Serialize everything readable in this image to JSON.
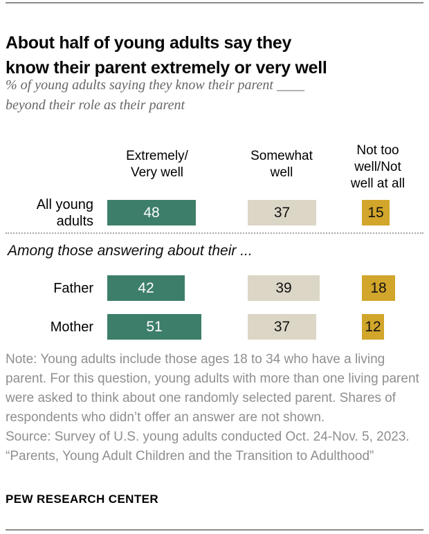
{
  "header": {
    "title": "About half of young adults say they\nknow their parent extremely or very well",
    "subtitle": "% of young adults saying they know their parent ____\nbeyond their role as their parent"
  },
  "chart_data": {
    "type": "bar",
    "orientation": "horizontal",
    "unit": "%",
    "value_labels_shown": true,
    "categories": [
      "All young adults",
      "Father",
      "Mother"
    ],
    "row_display_labels": [
      "All young\nadults",
      "Father",
      "Mother"
    ],
    "series": [
      {
        "name": "Extremely/Very well",
        "header_label": "Extremely/\nVery well",
        "color": "#3D7E6A",
        "label_color": "#ffffff",
        "values": [
          48,
          42,
          51
        ]
      },
      {
        "name": "Somewhat well",
        "header_label": "Somewhat\nwell",
        "color": "#DBD6C6",
        "label_color": "#111111",
        "values": [
          37,
          39,
          37
        ]
      },
      {
        "name": "Not too well/Not well at all",
        "header_label": "Not too\nwell/Not\nwell at all",
        "color": "#D2A52B",
        "label_color": "#111111",
        "values": [
          15,
          18,
          12
        ]
      }
    ],
    "section_divider_label": "Among those answering about their ..."
  },
  "footer": {
    "note": "Note: Young adults include those ages 18 to 34 who have a living parent. For this question, young adults with more than one living parent were asked to think about one randomly selected parent. Shares of respondents who didn’t offer an answer are not shown.",
    "source": "Source: Survey of U.S. young adults conducted Oct. 24-Nov. 5, 2023.",
    "report_title": "“Parents, Young Adult Children and the Transition to Adulthood”",
    "brand": "PEW RESEARCH CENTER"
  }
}
